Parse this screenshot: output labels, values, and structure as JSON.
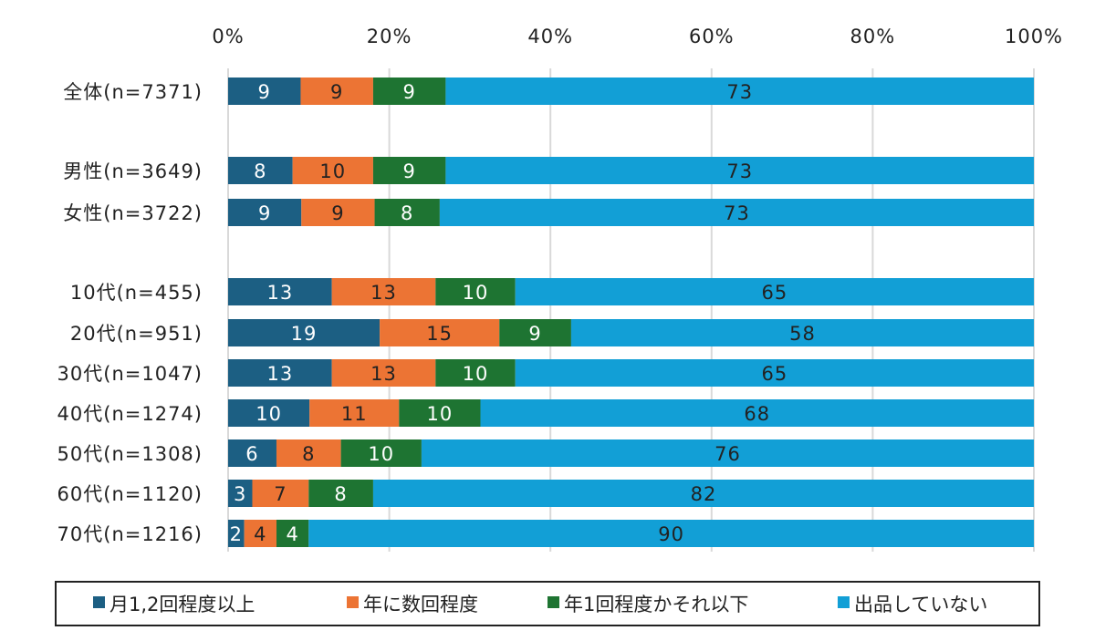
{
  "chart_data": {
    "type": "bar",
    "orientation": "horizontal",
    "stacked": "percent",
    "xlim": [
      0,
      100
    ],
    "x_ticks": [
      "0%",
      "20%",
      "40%",
      "60%",
      "80%",
      "100%"
    ],
    "grid": true,
    "legend_position": "bottom",
    "categories": [
      "全体(n=7371)",
      "男性(n=3649)",
      "女性(n=3722)",
      "10代(n=455)",
      "20代(n=951)",
      "30代(n=1047)",
      "40代(n=1274)",
      "50代(n=1308)",
      "60代(n=1120)",
      "70代(n=1216)"
    ],
    "series": [
      {
        "name": "月1,2回程度以上",
        "color": "#1c5f83",
        "label_color": "#ffffff",
        "values": [
          9,
          8,
          9,
          13,
          19,
          13,
          10,
          6,
          3,
          2
        ]
      },
      {
        "name": "年に数回程度",
        "color": "#ec7434",
        "label_color": "#222222",
        "values": [
          9,
          10,
          9,
          13,
          15,
          13,
          11,
          8,
          7,
          4
        ]
      },
      {
        "name": "年1回程度かそれ以下",
        "color": "#1e7432",
        "label_color": "#ffffff",
        "values": [
          9,
          9,
          8,
          10,
          9,
          10,
          10,
          10,
          8,
          4
        ]
      },
      {
        "name": "出品していない",
        "color": "#129fd6",
        "label_color": "#222222",
        "values": [
          73,
          73,
          73,
          65,
          58,
          65,
          68,
          76,
          82,
          90
        ]
      }
    ]
  }
}
